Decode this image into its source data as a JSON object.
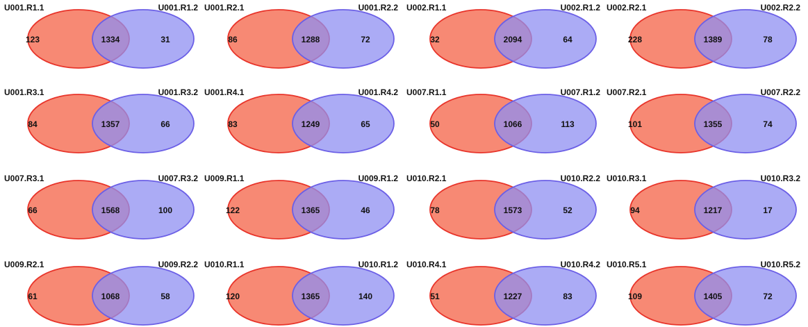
{
  "colors": {
    "left_fill": "#f7836d",
    "left_stroke": "#e8342a",
    "right_fill": "#8f8ff2",
    "right_stroke": "#6b5fe6",
    "text": "#111111"
  },
  "venn_diagrams": [
    {
      "left_label": "U001.R1.1",
      "right_label": "U001.R1.2",
      "left_only": 123,
      "overlap": 1334,
      "right_only": 31
    },
    {
      "left_label": "U001.R2.1",
      "right_label": "U001.R2.2",
      "left_only": 86,
      "overlap": 1288,
      "right_only": 72
    },
    {
      "left_label": "U002.R1.1",
      "right_label": "U002.R1.2",
      "left_only": 32,
      "overlap": 2094,
      "right_only": 64
    },
    {
      "left_label": "U002.R2.1",
      "right_label": "U002.R2.2",
      "left_only": 228,
      "overlap": 1389,
      "right_only": 78
    },
    {
      "left_label": "U001.R3.1",
      "right_label": "U001.R3.2",
      "left_only": 84,
      "overlap": 1357,
      "right_only": 66
    },
    {
      "left_label": "U001.R4.1",
      "right_label": "U001.R4.2",
      "left_only": 83,
      "overlap": 1249,
      "right_only": 65
    },
    {
      "left_label": "U007.R1.1",
      "right_label": "U007.R1.2",
      "left_only": 50,
      "overlap": 1066,
      "right_only": 113
    },
    {
      "left_label": "U007.R2.1",
      "right_label": "U007.R2.2",
      "left_only": 101,
      "overlap": 1355,
      "right_only": 74
    },
    {
      "left_label": "U007.R3.1",
      "right_label": "U007.R3.2",
      "left_only": 66,
      "overlap": 1568,
      "right_only": 100
    },
    {
      "left_label": "U009.R1.1",
      "right_label": "U009.R1.2",
      "left_only": 122,
      "overlap": 1365,
      "right_only": 46
    },
    {
      "left_label": "U010.R2.1",
      "right_label": "U010.R2.2",
      "left_only": 78,
      "overlap": 1573,
      "right_only": 52
    },
    {
      "left_label": "U010.R3.1",
      "right_label": "U010.R3.2",
      "left_only": 94,
      "overlap": 1217,
      "right_only": 17
    },
    {
      "left_label": "U009.R2.1",
      "right_label": "U009.R2.2",
      "left_only": 61,
      "overlap": 1068,
      "right_only": 58
    },
    {
      "left_label": "U010.R1.1",
      "right_label": "U010.R1.2",
      "left_only": 120,
      "overlap": 1365,
      "right_only": 140
    },
    {
      "left_label": "U010.R4.1",
      "right_label": "U010.R4.2",
      "left_only": 51,
      "overlap": 1227,
      "right_only": 83
    },
    {
      "left_label": "U010.R5.1",
      "right_label": "U010.R5.2",
      "left_only": 109,
      "overlap": 1405,
      "right_only": 72
    }
  ]
}
